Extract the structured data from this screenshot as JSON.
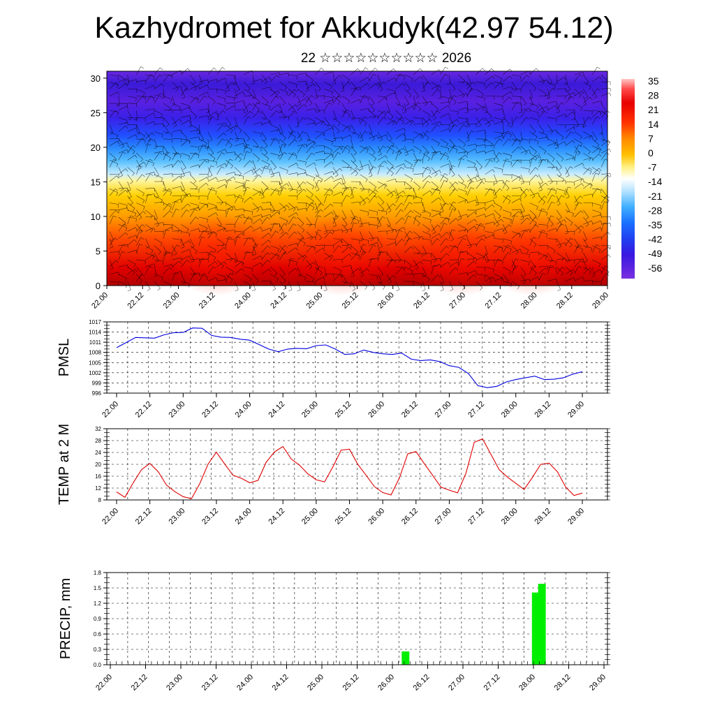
{
  "title": "Kazhydromet for Akkudyk(42.97 54.12)",
  "subtitle": "22 ☆☆☆☆☆☆☆☆☆☆ 2026",
  "colors": {
    "pmsl": "#0000e0",
    "temp": "#e00000",
    "precip": "#00ee00",
    "grid": "#000000"
  },
  "time_labels": [
    "22.00",
    "22.12",
    "23.00",
    "23.12",
    "24.00",
    "24.12",
    "25.00",
    "25.12",
    "26.00",
    "26.12",
    "27.00",
    "27.12",
    "28.00",
    "28.12",
    "29.00"
  ],
  "chart_data": [
    {
      "type": "heatmap",
      "name": "cross-section",
      "title": "Kazhydromet for Akkudyk(42.97 54.12)",
      "x_labels": [
        "22.00",
        "22.12",
        "23.00",
        "23.12",
        "24.00",
        "24.12",
        "25.00",
        "25.12",
        "26.00",
        "26.12",
        "27.00",
        "27.12",
        "28.00",
        "28.12",
        "29.00"
      ],
      "ylim": [
        0,
        31
      ],
      "y_ticks": [
        0,
        5,
        10,
        15,
        20,
        25,
        30
      ],
      "colorbar_labels": [
        "35",
        "28",
        "21",
        "14",
        "7",
        "0",
        "-7",
        "-14",
        "-21",
        "-28",
        "-35",
        "-42",
        "-49",
        "-56"
      ],
      "colorbar_min": -63,
      "colorbar_max": 42,
      "description_values": "temperature by level; warm near surface, cold above 20"
    },
    {
      "type": "line",
      "name": "PMSL",
      "ylabel": "PMSL",
      "ylim": [
        996,
        1017
      ],
      "y_ticks": [
        "1017",
        "1014",
        "1011",
        "1008",
        "1005",
        "1002",
        "999",
        "996"
      ],
      "x_ticks": [
        "22.00",
        "22.12",
        "23.00",
        "23.12",
        "24.00",
        "24.12",
        "25.00",
        "25.12",
        "26.00",
        "26.12",
        "27.00",
        "27.12",
        "28.00",
        "28.12",
        "29.00"
      ],
      "values": [
        1009.4,
        1010.9,
        1012.4,
        1012.3,
        1012.2,
        1013.2,
        1013.8,
        1013.9,
        1015.2,
        1015.1,
        1013.0,
        1012.5,
        1012.4,
        1011.9,
        1011.6,
        1010.3,
        1009.0,
        1008.2,
        1009.0,
        1009.2,
        1009.1,
        1010.0,
        1010.2,
        1009.0,
        1007.4,
        1007.6,
        1008.7,
        1008.0,
        1007.6,
        1007.4,
        1007.8,
        1006.0,
        1005.6,
        1005.8,
        1005.3,
        1004.1,
        1003.6,
        1001.8,
        998.2,
        997.6,
        998.0,
        999.3,
        1000.0,
        1000.5,
        1001.0,
        1000.0,
        1000.1,
        1000.5,
        1001.6,
        1002.3
      ]
    },
    {
      "type": "line",
      "name": "TEMP at 2 M",
      "ylabel": "TEMP at 2 M",
      "ylim": [
        8,
        32
      ],
      "y_ticks": [
        "32",
        "28",
        "24",
        "20",
        "16",
        "12",
        "8"
      ],
      "x_ticks": [
        "22.00",
        "22.12",
        "23.00",
        "23.12",
        "24.00",
        "24.12",
        "25.00",
        "25.12",
        "26.00",
        "26.12",
        "27.00",
        "27.12",
        "28.00",
        "28.12",
        "29.00"
      ],
      "values": [
        10.7,
        8.9,
        13.8,
        18.2,
        20.3,
        17.5,
        13.0,
        10.8,
        9.1,
        8.4,
        13.5,
        20.1,
        24.1,
        20.1,
        16.3,
        15.3,
        13.8,
        14.6,
        20.8,
        24.2,
        26.0,
        21.8,
        19.7,
        16.8,
        14.8,
        14.1,
        19.1,
        24.8,
        25.1,
        20.0,
        16.3,
        12.5,
        10.5,
        9.7,
        15.4,
        23.5,
        24.3,
        20.2,
        16.3,
        12.3,
        11.3,
        10.4,
        17.0,
        27.4,
        28.6,
        23.4,
        18.2,
        15.7,
        13.6,
        11.5,
        15.6,
        20.0,
        20.4,
        17.5,
        12.3,
        9.5,
        10.3
      ]
    },
    {
      "type": "bar",
      "name": "PRECIP, mm",
      "ylabel": "PRECIP, mm",
      "ylim": [
        0.0,
        1.8
      ],
      "y_ticks": [
        "1.8",
        "1.5",
        "1.2",
        "0.9",
        "0.6",
        "0.3",
        "0.0"
      ],
      "x_ticks": [
        "22.00",
        "22.12",
        "23.00",
        "23.12",
        "24.00",
        "24.12",
        "25.00",
        "25.12",
        "26.00",
        "26.12",
        "27.00",
        "27.12",
        "28.00",
        "28.12",
        "29.00"
      ],
      "bars": [
        {
          "t": 47,
          "value": 0.26
        },
        {
          "t": 68,
          "value": 1.41
        },
        {
          "t": 69,
          "value": 1.58
        }
      ]
    }
  ]
}
